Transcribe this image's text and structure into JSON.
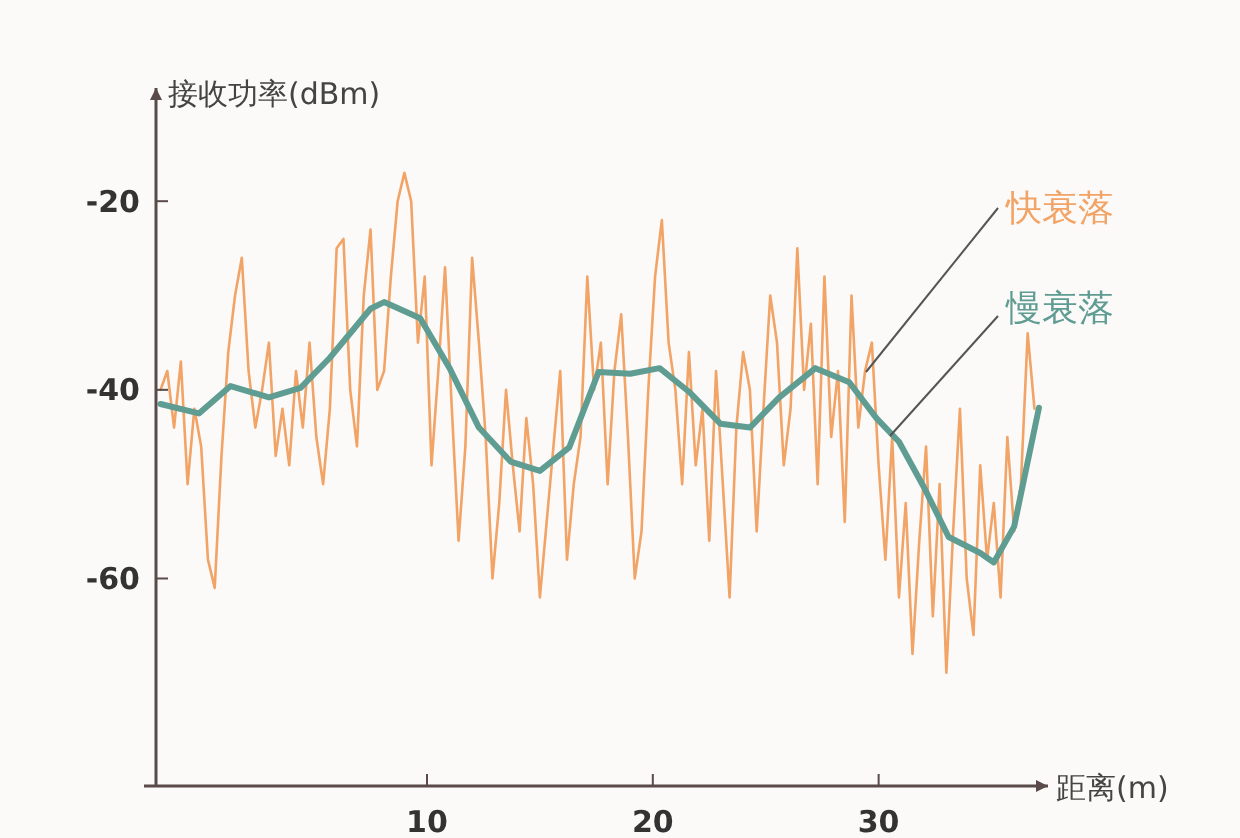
{
  "chart_data": {
    "type": "line",
    "ylabel": "接收功率(dBm)",
    "xlabel": "距离(m)",
    "xlim": [
      -2,
      37.5
    ],
    "ylim": [
      -82,
      -8
    ],
    "xticks": [
      10,
      20,
      30
    ],
    "yticks": [
      -20,
      -40,
      -60
    ],
    "grid": false,
    "line_style": "solid",
    "marker": "none",
    "x": [
      -1.8,
      -1.5,
      -1.2,
      -0.9,
      -0.6,
      -0.3,
      0,
      0.3,
      0.6,
      0.9,
      1.2,
      1.5,
      1.8,
      2.1,
      2.4,
      2.7,
      3,
      3.3,
      3.6,
      3.9,
      4.2,
      4.5,
      4.8,
      5.1,
      5.4,
      5.7,
      6,
      6.3,
      6.6,
      6.9,
      7.2,
      7.5,
      7.8,
      8.1,
      8.4,
      8.7,
      9,
      9.3,
      9.6,
      9.9,
      10.2,
      10.5,
      10.8,
      11.1,
      11.4,
      11.7,
      12,
      12.3,
      12.6,
      12.9,
      13.2,
      13.5,
      13.8,
      14.1,
      14.4,
      14.7,
      15,
      15.3,
      15.6,
      15.9,
      16.2,
      16.5,
      16.8,
      17.1,
      17.4,
      17.7,
      18,
      18.3,
      18.6,
      18.9,
      19.2,
      19.5,
      19.8,
      20.1,
      20.4,
      20.7,
      21,
      21.3,
      21.6,
      21.9,
      22.2,
      22.5,
      22.8,
      23.1,
      23.4,
      23.7,
      24,
      24.3,
      24.6,
      24.9,
      25.2,
      25.5,
      25.8,
      26.1,
      26.4,
      26.7,
      27,
      27.3,
      27.6,
      27.9,
      28.2,
      28.5,
      28.8,
      29.1,
      29.4,
      29.7,
      30,
      30.3,
      30.6,
      30.9,
      31.2,
      31.5,
      31.8,
      32.1,
      32.4,
      32.7,
      33,
      33.3,
      33.6,
      33.9,
      34.2,
      34.5,
      34.8,
      35.1,
      35.4,
      35.7,
      36,
      36.3,
      36.6,
      36.9
    ],
    "series": [
      {
        "name": "快衰落",
        "color": "#f2a366",
        "values": [
          -40,
          -38,
          -44,
          -37,
          -50,
          -42,
          -46,
          -58,
          -61,
          -47,
          -36,
          -30,
          -26,
          -38,
          -44,
          -40,
          -35,
          -47,
          -42,
          -48,
          -38,
          -44,
          -35,
          -45,
          -50,
          -42,
          -25,
          -24,
          -40,
          -46,
          -30,
          -23,
          -40,
          -38,
          -28,
          -20,
          -17,
          -20,
          -35,
          -28,
          -48,
          -38,
          -27,
          -42,
          -56,
          -46,
          -26,
          -35,
          -45,
          -60,
          -52,
          -40,
          -48,
          -55,
          -43,
          -50,
          -62,
          -54,
          -46,
          -38,
          -58,
          -50,
          -45,
          -28,
          -40,
          -35,
          -50,
          -38,
          -32,
          -45,
          -60,
          -55,
          -40,
          -28,
          -22,
          -35,
          -40,
          -50,
          -36,
          -48,
          -42,
          -56,
          -38,
          -50,
          -62,
          -44,
          -36,
          -40,
          -55,
          -42,
          -30,
          -35,
          -48,
          -42,
          -25,
          -40,
          -33,
          -50,
          -28,
          -45,
          -38,
          -54,
          -30,
          -44,
          -38,
          -35,
          -48,
          -58,
          -45,
          -62,
          -52,
          -68,
          -56,
          -46,
          -64,
          -50,
          -70,
          -55,
          -42,
          -60,
          -66,
          -48,
          -58,
          -52,
          -62,
          -45,
          -55,
          -50,
          -34,
          -42
        ]
      },
      {
        "name": "慢衰落",
        "color": "#5f9c92",
        "x": [
          -1.8,
          -0.1,
          1.3,
          3,
          4.4,
          5.7,
          7.5,
          8.1,
          9.7,
          11,
          12.3,
          13.7,
          15,
          16.3,
          17.6,
          19,
          20.3,
          21.6,
          23,
          24.3,
          25.6,
          27.2,
          28.7,
          29.9,
          30.9,
          32,
          33.1,
          34.5,
          35.1,
          36,
          37.1
        ],
        "values": [
          -41.5,
          -42.5,
          -39.6,
          -40.8,
          -39.8,
          -36.6,
          -31.4,
          -30.7,
          -32.4,
          -37.7,
          -44,
          -47.6,
          -48.6,
          -46.1,
          -38.1,
          -38.3,
          -37.7,
          -40.2,
          -43.6,
          -44,
          -40.8,
          -37.7,
          -39.2,
          -43,
          -45.5,
          -50.3,
          -55.6,
          -57.3,
          -58.3,
          -54.5,
          -41.9
        ]
      }
    ]
  }
}
